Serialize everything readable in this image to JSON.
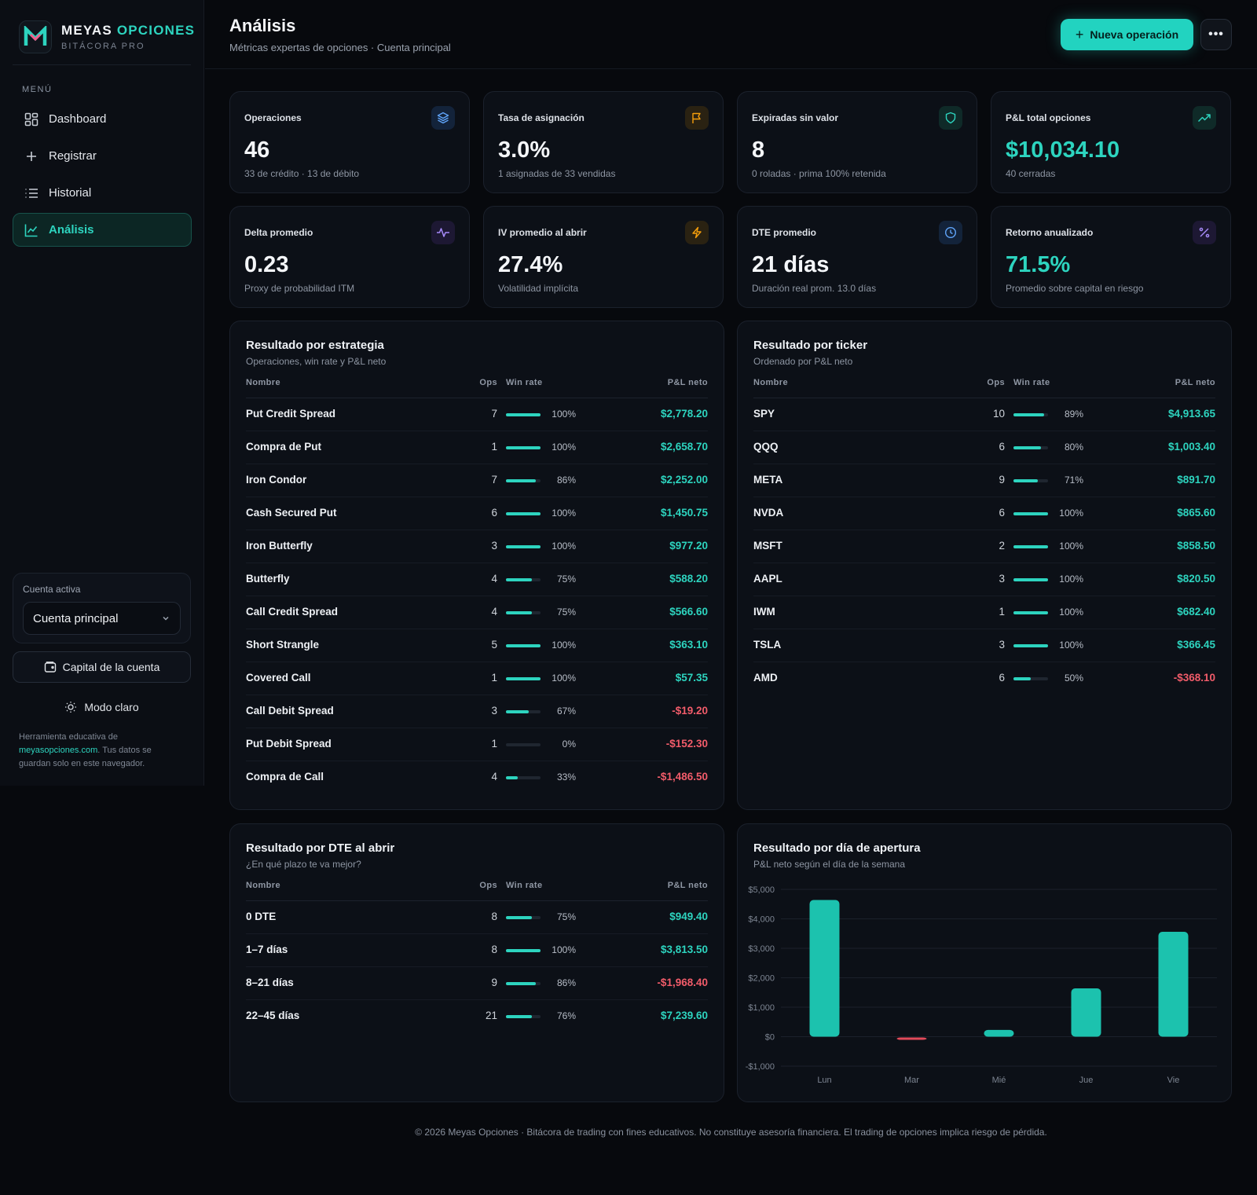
{
  "brand": {
    "name_part1": "MEYAS ",
    "name_part2": "OPCIONES",
    "sub": "BITÁCORA PRO",
    "logo_letter": "M"
  },
  "sidebar": {
    "menu_label": "MENÚ",
    "items": [
      {
        "label": "Dashboard",
        "icon": "grid-icon"
      },
      {
        "label": "Registrar",
        "icon": "plus-icon"
      },
      {
        "label": "Historial",
        "icon": "list-icon"
      },
      {
        "label": "Análisis",
        "icon": "chart-line-icon",
        "active": true
      }
    ],
    "account_label": "Cuenta activa",
    "account_value": "Cuenta principal",
    "capital_button": "Capital de la cuenta",
    "mode_button": "Modo claro",
    "note_prefix": "Herramienta educativa de ",
    "note_link": "meyasopciones.com",
    "note_suffix": ". Tus datos se guardan solo en este navegador."
  },
  "header": {
    "title": "Análisis",
    "subtitle": "Métricas expertas de opciones · Cuenta principal",
    "new_button": "Nueva operación",
    "more_button": "•••"
  },
  "stats": [
    {
      "label": "Operaciones",
      "value": "46",
      "sub": "33 de crédito · 13 de débito",
      "icon": "layers-icon",
      "icon_color": "#60a5fa",
      "icon_bg": "#13233a",
      "teal": false
    },
    {
      "label": "Tasa de asignación",
      "value": "3.0%",
      "sub": "1 asignadas de 33 vendidas",
      "icon": "flag-icon",
      "icon_color": "#f59e0b",
      "icon_bg": "#2a2212",
      "teal": false
    },
    {
      "label": "Expiradas sin valor",
      "value": "8",
      "sub": "0 roladas · prima 100% retenida",
      "icon": "shield-icon",
      "icon_color": "#2dd4bf",
      "icon_bg": "#0f2a28",
      "teal": false
    },
    {
      "label": "P&L total opciones",
      "value": "$10,034.10",
      "sub": "40 cerradas",
      "icon": "trending-up-icon",
      "icon_color": "#2dd4bf",
      "icon_bg": "#0f2a28",
      "teal": true
    },
    {
      "label": "Delta promedio",
      "value": "0.23",
      "sub": "Proxy de probabilidad ITM",
      "icon": "activity-icon",
      "icon_color": "#a78bfa",
      "icon_bg": "#1d1833",
      "teal": false
    },
    {
      "label": "IV promedio al abrir",
      "value": "27.4%",
      "sub": "Volatilidad implícita",
      "icon": "bolt-icon",
      "icon_color": "#f59e0b",
      "icon_bg": "#2a2212",
      "teal": false
    },
    {
      "label": "DTE promedio",
      "value": "21 días",
      "sub": "Duración real prom. 13.0 días",
      "icon": "clock-icon",
      "icon_color": "#60a5fa",
      "icon_bg": "#13233a",
      "teal": false
    },
    {
      "label": "Retorno anualizado",
      "value": "71.5%",
      "sub": "Promedio sobre capital en riesgo",
      "icon": "percent-icon",
      "icon_color": "#a78bfa",
      "icon_bg": "#1d1833",
      "teal": true
    }
  ],
  "columns": {
    "name": "Nombre",
    "ops": "Ops",
    "win": "Win rate",
    "pl": "P&L neto"
  },
  "strategy": {
    "title": "Resultado por estrategia",
    "subtitle": "Operaciones, win rate y P&L neto",
    "rows": [
      {
        "name": "Put Credit Spread",
        "ops": "7",
        "win": 100,
        "win_text": "100%",
        "pl": "$2,778.20",
        "neg": false
      },
      {
        "name": "Compra de Put",
        "ops": "1",
        "win": 100,
        "win_text": "100%",
        "pl": "$2,658.70",
        "neg": false
      },
      {
        "name": "Iron Condor",
        "ops": "7",
        "win": 86,
        "win_text": "86%",
        "pl": "$2,252.00",
        "neg": false
      },
      {
        "name": "Cash Secured Put",
        "ops": "6",
        "win": 100,
        "win_text": "100%",
        "pl": "$1,450.75",
        "neg": false
      },
      {
        "name": "Iron Butterfly",
        "ops": "3",
        "win": 100,
        "win_text": "100%",
        "pl": "$977.20",
        "neg": false
      },
      {
        "name": "Butterfly",
        "ops": "4",
        "win": 75,
        "win_text": "75%",
        "pl": "$588.20",
        "neg": false
      },
      {
        "name": "Call Credit Spread",
        "ops": "4",
        "win": 75,
        "win_text": "75%",
        "pl": "$566.60",
        "neg": false
      },
      {
        "name": "Short Strangle",
        "ops": "5",
        "win": 100,
        "win_text": "100%",
        "pl": "$363.10",
        "neg": false
      },
      {
        "name": "Covered Call",
        "ops": "1",
        "win": 100,
        "win_text": "100%",
        "pl": "$57.35",
        "neg": false
      },
      {
        "name": "Call Debit Spread",
        "ops": "3",
        "win": 67,
        "win_text": "67%",
        "pl": "-$19.20",
        "neg": true
      },
      {
        "name": "Put Debit Spread",
        "ops": "1",
        "win": 0,
        "win_text": "0%",
        "pl": "-$152.30",
        "neg": true
      },
      {
        "name": "Compra de Call",
        "ops": "4",
        "win": 33,
        "win_text": "33%",
        "pl": "-$1,486.50",
        "neg": true
      }
    ]
  },
  "ticker": {
    "title": "Resultado por ticker",
    "subtitle": "Ordenado por P&L neto",
    "rows": [
      {
        "name": "SPY",
        "ops": "10",
        "win": 89,
        "win_text": "89%",
        "pl": "$4,913.65",
        "neg": false
      },
      {
        "name": "QQQ",
        "ops": "6",
        "win": 80,
        "win_text": "80%",
        "pl": "$1,003.40",
        "neg": false
      },
      {
        "name": "META",
        "ops": "9",
        "win": 71,
        "win_text": "71%",
        "pl": "$891.70",
        "neg": false
      },
      {
        "name": "NVDA",
        "ops": "6",
        "win": 100,
        "win_text": "100%",
        "pl": "$865.60",
        "neg": false
      },
      {
        "name": "MSFT",
        "ops": "2",
        "win": 100,
        "win_text": "100%",
        "pl": "$858.50",
        "neg": false
      },
      {
        "name": "AAPL",
        "ops": "3",
        "win": 100,
        "win_text": "100%",
        "pl": "$820.50",
        "neg": false
      },
      {
        "name": "IWM",
        "ops": "1",
        "win": 100,
        "win_text": "100%",
        "pl": "$682.40",
        "neg": false
      },
      {
        "name": "TSLA",
        "ops": "3",
        "win": 100,
        "win_text": "100%",
        "pl": "$366.45",
        "neg": false
      },
      {
        "name": "AMD",
        "ops": "6",
        "win": 50,
        "win_text": "50%",
        "pl": "-$368.10",
        "neg": true
      }
    ]
  },
  "dte": {
    "title": "Resultado por DTE al abrir",
    "subtitle": "¿En qué plazo te va mejor?",
    "rows": [
      {
        "name": "0 DTE",
        "ops": "8",
        "win": 75,
        "win_text": "75%",
        "pl": "$949.40",
        "neg": false
      },
      {
        "name": "1–7 días",
        "ops": "8",
        "win": 100,
        "win_text": "100%",
        "pl": "$3,813.50",
        "neg": false
      },
      {
        "name": "8–21 días",
        "ops": "9",
        "win": 86,
        "win_text": "86%",
        "pl": "-$1,968.40",
        "neg": true
      },
      {
        "name": "22–45 días",
        "ops": "21",
        "win": 76,
        "win_text": "76%",
        "pl": "$7,239.60",
        "neg": false
      }
    ]
  },
  "weekday": {
    "title": "Resultado por día de apertura",
    "subtitle": "P&L neto según el día de la semana"
  },
  "chart_data": {
    "type": "bar",
    "categories": [
      "Lun",
      "Mar",
      "Mié",
      "Jue",
      "Vie"
    ],
    "values": [
      4640,
      -80,
      230,
      1640,
      3560
    ],
    "ylim": [
      -1000,
      5000
    ],
    "yticks": [
      5000,
      4000,
      3000,
      2000,
      1000,
      0,
      -1000
    ],
    "ytick_labels": [
      "$5,000",
      "$4,000",
      "$3,000",
      "$2,000",
      "$1,000",
      "$0",
      "-$1,000"
    ],
    "grid": true,
    "positive_color": "#1cc2ae",
    "negative_color": "#e24a5a"
  },
  "footer": "© 2026 Meyas Opciones · Bitácora de trading con fines educativos. No constituye asesoría financiera. El trading de opciones implica riesgo de pérdida."
}
